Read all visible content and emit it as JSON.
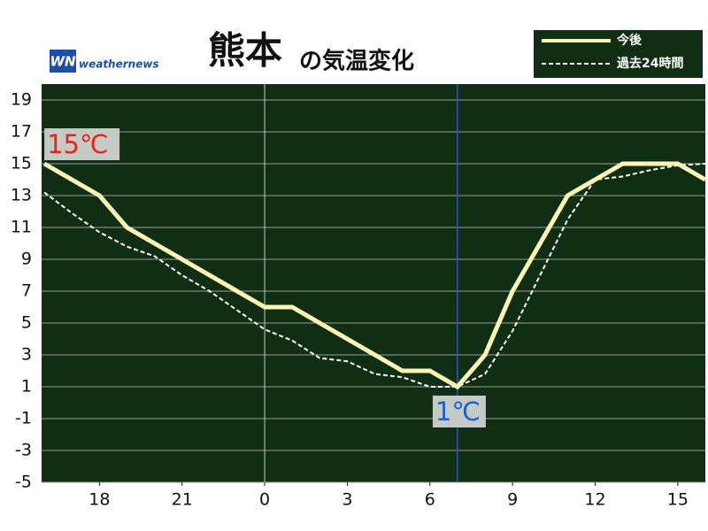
{
  "brand": "weathernews",
  "brand_mark": "WN",
  "chart_data": {
    "type": "line",
    "title": "熊本",
    "title_suffix": "の気温変化",
    "xlim": [
      15.9,
      40
    ],
    "ylim": [
      -5,
      20
    ],
    "xticks": [
      18,
      21,
      {
        "value": 24,
        "label": "0"
      },
      {
        "value": 27,
        "label": "3"
      },
      {
        "value": 30,
        "label": "6"
      },
      {
        "value": 33,
        "label": "9"
      },
      {
        "value": 36,
        "label": "12"
      },
      {
        "value": 39,
        "label": "15"
      }
    ],
    "yticks": [
      -5,
      -3,
      -1,
      1,
      3,
      5,
      7,
      9,
      11,
      13,
      15,
      17,
      19
    ],
    "midnight_line": 24,
    "now_line": 31,
    "series": [
      {
        "name": "今後",
        "color": "#fdf5b4",
        "dash": false,
        "x": [
          16,
          18,
          19,
          24,
          25,
          29,
          30,
          31,
          32,
          33,
          35,
          37,
          39,
          40
        ],
        "values": [
          15,
          13,
          11,
          6,
          6,
          2,
          2,
          1,
          3,
          7,
          13,
          15,
          15,
          14
        ]
      },
      {
        "name": "過去24時間",
        "color": "#ffffff",
        "dash": true,
        "x": [
          16,
          17,
          18,
          19,
          20,
          21,
          22,
          23,
          24,
          25,
          26,
          27,
          28,
          29,
          30,
          31,
          32,
          33,
          34,
          35,
          36,
          37,
          38,
          39,
          40
        ],
        "values": [
          13.2,
          11.9,
          10.7,
          9.8,
          9.2,
          8,
          7,
          5.8,
          4.6,
          3.9,
          2.8,
          2.6,
          1.8,
          1.6,
          1,
          1,
          1.8,
          4.5,
          8,
          11.5,
          14,
          14.2,
          14.6,
          14.9,
          15
        ]
      }
    ],
    "annotations": [
      {
        "text": "15℃",
        "x": 16,
        "y": 15,
        "color": "#e8231b"
      },
      {
        "text": "1℃",
        "x": 31,
        "y": 1,
        "color": "#1f5fd6"
      }
    ]
  }
}
